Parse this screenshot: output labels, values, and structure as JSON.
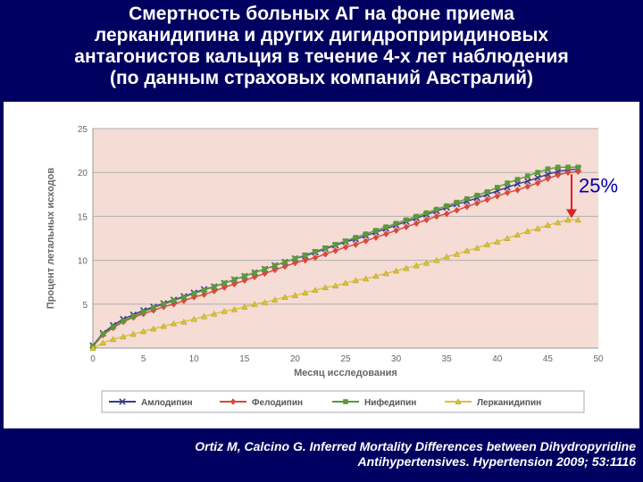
{
  "title_lines": [
    "Смертность больных АГ на фоне приема",
    "лерканидипина и других дигидроприридиновых",
    "антагонистов кальция в течение 4-х лет наблюдения",
    "(по данным страховых компаний Австралий)"
  ],
  "annotation": "25%",
  "citation_lines": [
    "Ortiz M, Calcino G. Inferred Mortality Differences between Dihydropyridine",
    "Antihypertensives. Hypertension 2009; 53:1116"
  ],
  "colors": {
    "background": "#000060",
    "plot_area": "#f5dcd4",
    "arrow": "#e02020",
    "annotation_text": "#0000aa"
  },
  "chart_data": {
    "type": "line",
    "xlabel": "Месяц исследования",
    "ylabel": "Процент летальных исходов",
    "xlim": [
      0,
      50
    ],
    "ylim": [
      0,
      25
    ],
    "xticks": [
      0,
      5,
      10,
      15,
      20,
      25,
      30,
      35,
      40,
      45,
      50
    ],
    "yticks": [
      5,
      10,
      15,
      20,
      25
    ],
    "grid": true,
    "legend_position": "bottom",
    "x": [
      0,
      1,
      2,
      3,
      4,
      5,
      6,
      7,
      8,
      9,
      10,
      11,
      12,
      13,
      14,
      15,
      16,
      17,
      18,
      19,
      20,
      21,
      22,
      23,
      24,
      25,
      26,
      27,
      28,
      29,
      30,
      31,
      32,
      33,
      34,
      35,
      36,
      37,
      38,
      39,
      40,
      41,
      42,
      43,
      44,
      45,
      46,
      47,
      48
    ],
    "series": [
      {
        "name": "Амлодипин",
        "color": "#3a3a8c",
        "marker": "x",
        "values": [
          0.3,
          1.7,
          2.6,
          3.3,
          3.8,
          4.3,
          4.7,
          5.1,
          5.5,
          5.9,
          6.3,
          6.7,
          7.0,
          7.4,
          7.8,
          8.2,
          8.6,
          9.0,
          9.4,
          9.8,
          10.2,
          10.5,
          10.9,
          11.3,
          11.7,
          12.1,
          12.4,
          12.8,
          13.2,
          13.6,
          14.0,
          14.4,
          14.8,
          15.2,
          15.6,
          16.0,
          16.4,
          16.7,
          17.1,
          17.5,
          17.9,
          18.3,
          18.7,
          19.0,
          19.4,
          19.8,
          20.1,
          20.3,
          20.4
        ]
      },
      {
        "name": "Фелодипин",
        "color": "#d9473a",
        "marker": "diamond",
        "values": [
          0.2,
          1.5,
          2.3,
          3.0,
          3.5,
          3.9,
          4.3,
          4.7,
          5.0,
          5.4,
          5.8,
          6.1,
          6.5,
          6.9,
          7.3,
          7.7,
          8.1,
          8.5,
          8.9,
          9.3,
          9.7,
          10.0,
          10.3,
          10.7,
          11.1,
          11.5,
          11.8,
          12.2,
          12.6,
          13.0,
          13.4,
          13.8,
          14.2,
          14.6,
          15.0,
          15.3,
          15.7,
          16.1,
          16.5,
          16.9,
          17.3,
          17.7,
          18.0,
          18.4,
          18.8,
          19.3,
          19.7,
          20.0,
          20.1
        ]
      },
      {
        "name": "Нифедипин",
        "color": "#5a9a3a",
        "marker": "square",
        "values": [
          0.2,
          1.6,
          2.4,
          3.1,
          3.6,
          4.1,
          4.6,
          5.0,
          5.4,
          5.8,
          6.2,
          6.6,
          7.0,
          7.4,
          7.8,
          8.2,
          8.6,
          9.0,
          9.4,
          9.8,
          10.2,
          10.6,
          11.0,
          11.4,
          11.8,
          12.2,
          12.6,
          13.0,
          13.4,
          13.8,
          14.2,
          14.6,
          15.0,
          15.4,
          15.8,
          16.2,
          16.6,
          17.0,
          17.4,
          17.8,
          18.3,
          18.8,
          19.2,
          19.6,
          20.0,
          20.4,
          20.6,
          20.6,
          20.6
        ]
      },
      {
        "name": "Лерканидипин",
        "color": "#d8c23a",
        "marker": "triangle",
        "values": [
          0.0,
          0.6,
          1.0,
          1.3,
          1.6,
          1.9,
          2.2,
          2.5,
          2.8,
          3.0,
          3.3,
          3.6,
          3.9,
          4.2,
          4.4,
          4.7,
          5.0,
          5.2,
          5.5,
          5.8,
          6.0,
          6.3,
          6.6,
          6.9,
          7.1,
          7.4,
          7.7,
          7.9,
          8.2,
          8.5,
          8.8,
          9.1,
          9.4,
          9.7,
          10.0,
          10.4,
          10.7,
          11.1,
          11.4,
          11.8,
          12.1,
          12.5,
          12.9,
          13.3,
          13.6,
          14.0,
          14.3,
          14.6,
          14.6
        ]
      }
    ]
  }
}
